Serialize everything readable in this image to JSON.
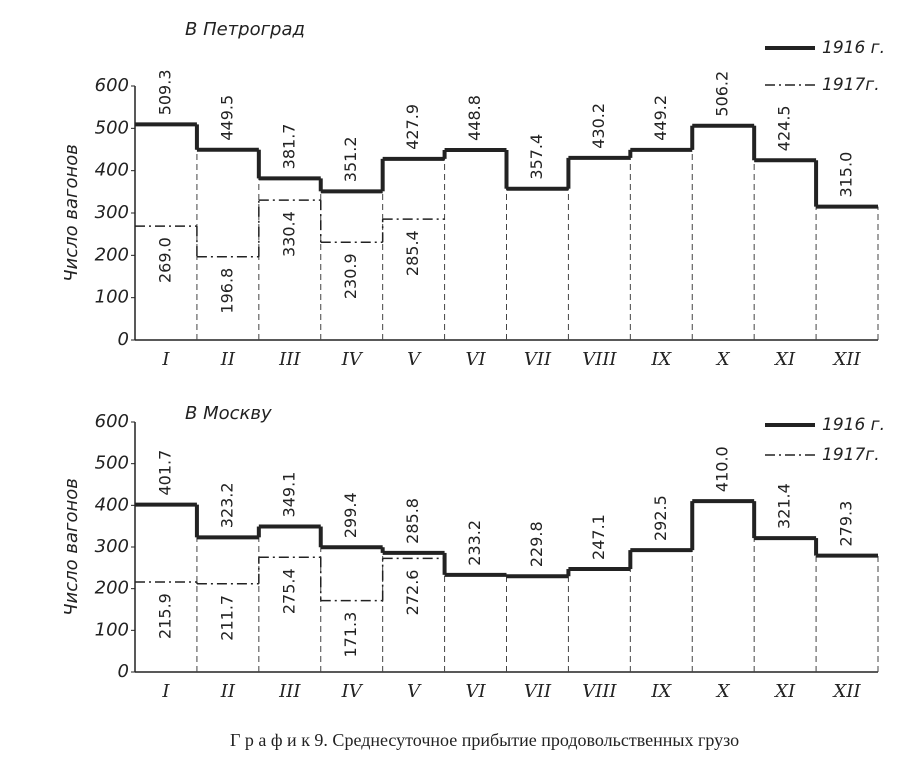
{
  "chart_data": [
    {
      "type": "step",
      "title": "В Петроград",
      "y_label": "Число вагонов",
      "categories": [
        "I",
        "II",
        "III",
        "IV",
        "V",
        "VI",
        "VII",
        "VIII",
        "IX",
        "X",
        "XI",
        "XII"
      ],
      "series": [
        {
          "name": "1916 г.",
          "color": "#222222",
          "style": "solid",
          "values": [
            509.3,
            449.5,
            381.7,
            351.2,
            427.9,
            448.8,
            357.4,
            430.2,
            449.2,
            506.2,
            424.5,
            315.0
          ],
          "value_labels": [
            "509.3",
            "449.5",
            "381.7",
            "351.2",
            "427.9",
            "448.8",
            "357.4",
            "430.2",
            "449.2",
            "506.2",
            "424.5",
            "315.0"
          ]
        },
        {
          "name": "1917г.",
          "color": "#222222",
          "style": "dashdot",
          "values": [
            269.0,
            196.8,
            330.4,
            230.9,
            285.4,
            null,
            null,
            null,
            null,
            null,
            null,
            null
          ],
          "value_labels": [
            "269.0",
            "196.8",
            "330.4",
            "230.9",
            "285.4",
            null,
            null,
            null,
            null,
            null,
            null,
            null
          ]
        }
      ],
      "ylim": [
        0,
        600
      ],
      "yticks": [
        0,
        100,
        200,
        300,
        400,
        500,
        600
      ]
    },
    {
      "type": "step",
      "title": "В Москву",
      "y_label": "Число вагонов",
      "categories": [
        "I",
        "II",
        "III",
        "IV",
        "V",
        "VI",
        "VII",
        "VIII",
        "IX",
        "X",
        "XI",
        "XII"
      ],
      "series": [
        {
          "name": "1916 г.",
          "color": "#222222",
          "style": "solid",
          "values": [
            401.7,
            323.2,
            349.1,
            299.4,
            285.8,
            233.2,
            229.8,
            247.1,
            292.5,
            410.0,
            321.4,
            279.3
          ],
          "value_labels": [
            "401.7",
            "323.2",
            "349.1",
            "299.4",
            "285.8",
            "233.2",
            "229.8",
            "247.1",
            "292.5",
            "410.0",
            "321.4",
            "279.3"
          ]
        },
        {
          "name": "1917г.",
          "color": "#222222",
          "style": "dashdot",
          "values": [
            215.9,
            211.7,
            275.4,
            171.3,
            272.6,
            null,
            null,
            null,
            null,
            null,
            null,
            null
          ],
          "value_labels": [
            "215.9",
            "211.7",
            "275.4",
            "171.3",
            "272.6",
            null,
            null,
            null,
            null,
            null,
            null,
            null
          ]
        }
      ],
      "ylim": [
        0,
        600
      ],
      "yticks": [
        0,
        100,
        200,
        300,
        400,
        500,
        600
      ]
    }
  ],
  "caption": "Г р а ф и к 9. Среднесуточное прибытие продовольственных грузо"
}
